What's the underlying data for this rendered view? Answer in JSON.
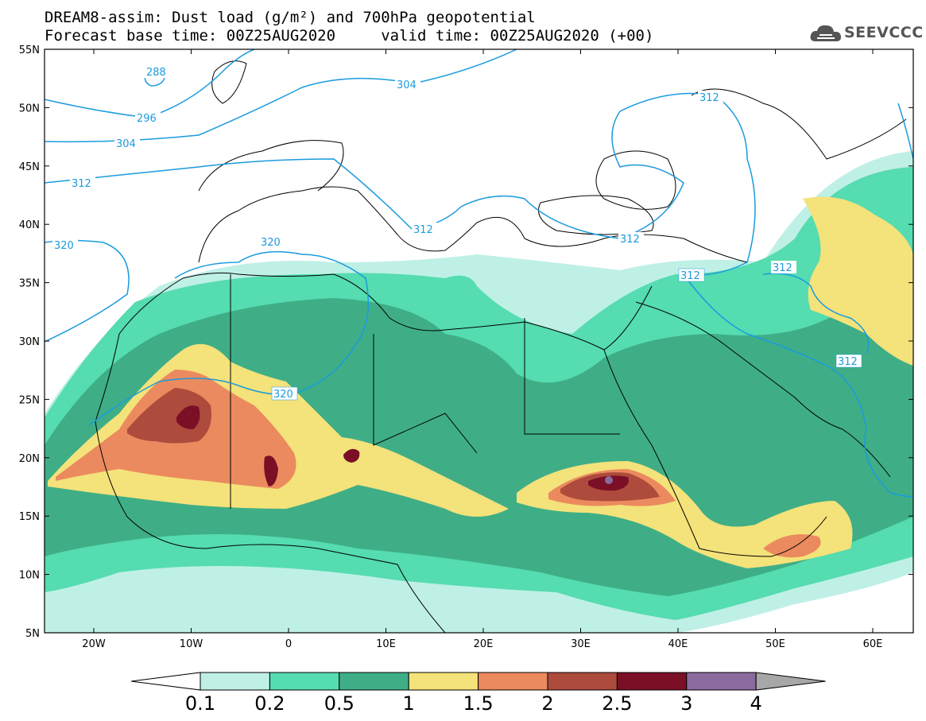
{
  "header": {
    "title_line1": "DREAM8-assim: Dust load (g/m²) and 700hPa geopotential",
    "title_line2": "Forecast base time: 00Z25AUG2020     valid time: 00Z25AUG2020 (+00)"
  },
  "logo": {
    "text": "SEEVCCC",
    "icon": "cloud-logo-icon"
  },
  "axes": {
    "lat_labels": [
      "55N",
      "50N",
      "45N",
      "40N",
      "35N",
      "30N",
      "25N",
      "20N",
      "15N",
      "10N",
      "5N"
    ],
    "lon_labels": [
      "20W",
      "10W",
      "0",
      "10E",
      "20E",
      "30E",
      "40E",
      "50E",
      "60E"
    ]
  },
  "colorbar": {
    "labels": [
      "0.1",
      "0.2",
      "0.5",
      "1",
      "1.5",
      "2",
      "2.5",
      "3",
      "4"
    ],
    "colors": [
      "#bff0e6",
      "#55dcb0",
      "#3fae87",
      "#f4e27a",
      "#eb8a5e",
      "#ad4b3c",
      "#7a0f26",
      "#8b6b9e",
      "#a7a7a7"
    ]
  },
  "contour_labels": {
    "288": "288",
    "296": "296",
    "304": "304",
    "312": "312",
    "320": "320"
  },
  "colors": {
    "contour": "#1a9bde",
    "ocean": "#ffffff",
    "border": "#000000"
  }
}
